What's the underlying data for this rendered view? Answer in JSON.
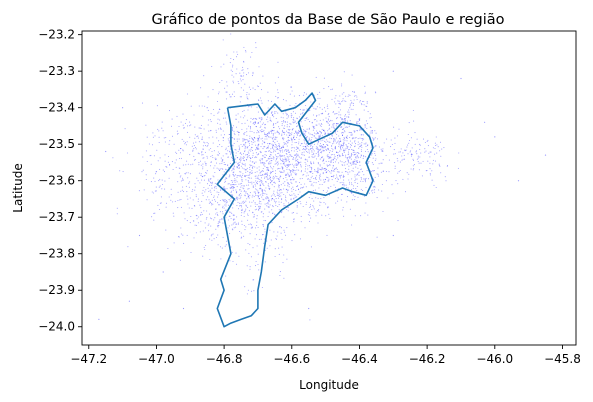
{
  "chart_data": {
    "type": "scatter",
    "title": "Gráfico de pontos da Base de São Paulo e região",
    "xlabel": "Longitude",
    "ylabel": "Latitude",
    "xlim": [
      -47.22,
      -45.76
    ],
    "ylim": [
      -24.05,
      -23.19
    ],
    "xticks": [
      -47.2,
      -47.0,
      -46.8,
      -46.6,
      -46.4,
      -46.2,
      -46.0,
      -45.8
    ],
    "xtick_labels": [
      "−47.2",
      "−47.0",
      "−46.8",
      "−46.6",
      "−46.4",
      "−46.2",
      "−46.0",
      "−45.8"
    ],
    "yticks": [
      -24.0,
      -23.9,
      -23.8,
      -23.7,
      -23.6,
      -23.5,
      -23.4,
      -23.3,
      -23.2
    ],
    "ytick_labels": [
      "−24.0",
      "−23.9",
      "−23.8",
      "−23.7",
      "−23.6",
      "−23.5",
      "−23.4",
      "−23.3",
      "−23.2"
    ],
    "grid": false,
    "point_color": "#3333ff",
    "boundary_color": "#1f77b4",
    "clusters": [
      {
        "center": [
          -46.64,
          -23.55
        ],
        "spread": [
          0.13,
          0.08
        ],
        "count": 1500
      },
      {
        "center": [
          -46.74,
          -23.63
        ],
        "spread": [
          0.07,
          0.07
        ],
        "count": 400
      },
      {
        "center": [
          -46.52,
          -23.52
        ],
        "spread": [
          0.09,
          0.05
        ],
        "count": 300
      },
      {
        "center": [
          -46.44,
          -23.49
        ],
        "spread": [
          0.05,
          0.05
        ],
        "count": 250
      },
      {
        "center": [
          -46.6,
          -23.44
        ],
        "spread": [
          0.09,
          0.05
        ],
        "count": 200
      },
      {
        "center": [
          -46.88,
          -23.52
        ],
        "spread": [
          0.08,
          0.06
        ],
        "count": 180
      },
      {
        "center": [
          -46.22,
          -23.54
        ],
        "spread": [
          0.05,
          0.04
        ],
        "count": 120
      },
      {
        "center": [
          -46.76,
          -23.3
        ],
        "spread": [
          0.04,
          0.04
        ],
        "count": 80
      },
      {
        "center": [
          -46.84,
          -23.7
        ],
        "spread": [
          0.06,
          0.05
        ],
        "count": 100
      },
      {
        "center": [
          -46.4,
          -23.6
        ],
        "spread": [
          0.05,
          0.04
        ],
        "count": 100
      },
      {
        "center": [
          -46.7,
          -23.8
        ],
        "spread": [
          0.06,
          0.06
        ],
        "count": 60
      },
      {
        "center": [
          -46.95,
          -23.62
        ],
        "spread": [
          0.06,
          0.06
        ],
        "count": 60
      },
      {
        "center": [
          -46.45,
          -23.38
        ],
        "spread": [
          0.05,
          0.03
        ],
        "count": 60
      }
    ],
    "outlier_points": [
      [
        -47.17,
        -23.98
      ],
      [
        -47.15,
        -23.52
      ],
      [
        -47.1,
        -23.4
      ],
      [
        -47.08,
        -23.93
      ],
      [
        -46.92,
        -23.95
      ],
      [
        -46.85,
        -23.4
      ],
      [
        -45.85,
        -23.53
      ],
      [
        -45.93,
        -23.6
      ],
      [
        -46.03,
        -23.44
      ],
      [
        -46.1,
        -23.32
      ],
      [
        -46.0,
        -23.48
      ],
      [
        -46.3,
        -23.3
      ],
      [
        -47.05,
        -23.75
      ],
      [
        -46.98,
        -23.85
      ],
      [
        -46.55,
        -23.95
      ],
      [
        -46.3,
        -23.75
      ]
    ],
    "boundary": [
      [
        -46.79,
        -23.4
      ],
      [
        -46.7,
        -23.39
      ],
      [
        -46.68,
        -23.42
      ],
      [
        -46.65,
        -23.39
      ],
      [
        -46.63,
        -23.41
      ],
      [
        -46.59,
        -23.4
      ],
      [
        -46.56,
        -23.38
      ],
      [
        -46.54,
        -23.36
      ],
      [
        -46.53,
        -23.38
      ],
      [
        -46.58,
        -23.44
      ],
      [
        -46.57,
        -23.47
      ],
      [
        -46.55,
        -23.5
      ],
      [
        -46.48,
        -23.47
      ],
      [
        -46.45,
        -23.44
      ],
      [
        -46.4,
        -23.45
      ],
      [
        -46.37,
        -23.48
      ],
      [
        -46.36,
        -23.51
      ],
      [
        -46.38,
        -23.55
      ],
      [
        -46.36,
        -23.6
      ],
      [
        -46.38,
        -23.64
      ],
      [
        -46.42,
        -23.63
      ],
      [
        -46.45,
        -23.62
      ],
      [
        -46.5,
        -23.64
      ],
      [
        -46.55,
        -23.63
      ],
      [
        -46.58,
        -23.65
      ],
      [
        -46.63,
        -23.68
      ],
      [
        -46.67,
        -23.72
      ],
      [
        -46.68,
        -23.78
      ],
      [
        -46.69,
        -23.85
      ],
      [
        -46.7,
        -23.9
      ],
      [
        -46.7,
        -23.95
      ],
      [
        -46.72,
        -23.97
      ],
      [
        -46.75,
        -23.98
      ],
      [
        -46.78,
        -23.99
      ],
      [
        -46.8,
        -24.0
      ],
      [
        -46.82,
        -23.95
      ],
      [
        -46.8,
        -23.9
      ],
      [
        -46.81,
        -23.87
      ],
      [
        -46.78,
        -23.8
      ],
      [
        -46.79,
        -23.75
      ],
      [
        -46.8,
        -23.7
      ],
      [
        -46.77,
        -23.65
      ],
      [
        -46.82,
        -23.61
      ],
      [
        -46.77,
        -23.55
      ],
      [
        -46.78,
        -23.5
      ],
      [
        -46.78,
        -23.45
      ],
      [
        -46.79,
        -23.4
      ]
    ]
  }
}
